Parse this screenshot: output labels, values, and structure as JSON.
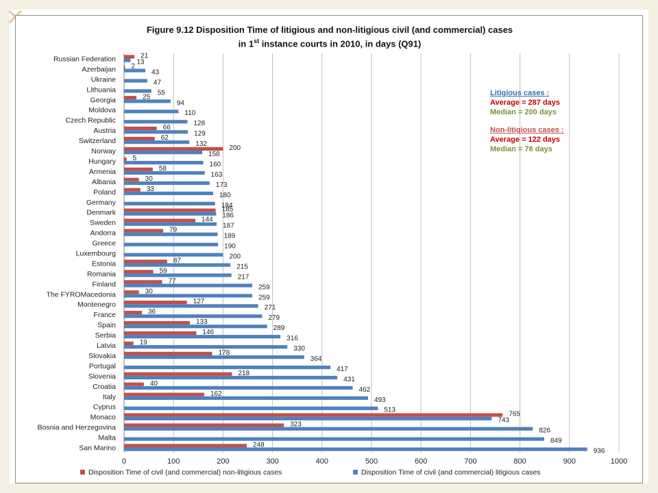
{
  "chart_data": {
    "type": "bar",
    "orientation": "horizontal",
    "title_line1": "Figure 9.12 Disposition Time of litigious and non-litigious civil (and commercial) cases",
    "title_line2_pre": "in 1",
    "title_line2_sup": "st",
    "title_line2_post": " instance courts in 2010, in days (Q91)",
    "xlim": [
      0,
      1000
    ],
    "xticks": [
      0,
      100,
      200,
      300,
      400,
      500,
      600,
      700,
      800,
      900,
      1000
    ],
    "grid": true,
    "legend_position": "bottom",
    "categories": [
      "Russian Federation",
      "Azerbaijan",
      "Ukraine",
      "Lithuania",
      "Georgia",
      "Moldova",
      "Czech Republic",
      "Austria",
      "Switzerland",
      "Norway",
      "Hungary",
      "Armenia",
      "Albania",
      "Poland",
      "Germany",
      "Denmark",
      "Sweden",
      "Andorra",
      "Greece",
      "Luxembourg",
      "Estonia",
      "Romania",
      "Finland",
      "The FYROMacedonia",
      "Montenegro",
      "France",
      "Spain",
      "Serbia",
      "Latvia",
      "Slovakia",
      "Portugal",
      "Slovenia",
      "Croatia",
      "Italy",
      "Cyprus",
      "Monaco",
      "Bosnia and Herzegovina",
      "Malta",
      "San Marino"
    ],
    "series": [
      {
        "name": "Disposition Time of civil (and commercial) non-litigious cases",
        "color": "#c0504d",
        "values": [
          21,
          2,
          null,
          null,
          25,
          null,
          null,
          66,
          62,
          200,
          5,
          58,
          30,
          33,
          null,
          185,
          144,
          79,
          null,
          null,
          87,
          59,
          77,
          30,
          127,
          36,
          133,
          146,
          19,
          178,
          null,
          218,
          40,
          162,
          null,
          765,
          323,
          null,
          248
        ]
      },
      {
        "name": "Disposition Time of civil (and commercial) litigious cases",
        "color": "#4f81bd",
        "values": [
          13,
          43,
          47,
          55,
          94,
          110,
          128,
          129,
          132,
          158,
          160,
          163,
          173,
          180,
          184,
          186,
          187,
          189,
          190,
          200,
          215,
          217,
          259,
          259,
          271,
          279,
          289,
          316,
          330,
          364,
          417,
          431,
          462,
          493,
          513,
          743,
          826,
          849,
          936
        ]
      }
    ]
  },
  "annotations": {
    "litigious_heading": "Litigious cases :",
    "litigious_average": "Average = 287 days",
    "litigious_median": "Median = 200 days",
    "nonlitigious_heading": "Non-litigious cases :",
    "nonlitigious_average": "Average = 122 days",
    "nonlitigious_median": "Median = 78 days",
    "heading_color": "#2e74b5",
    "nonlit_heading_color": "#c0504d",
    "average_color": "#c00000",
    "median_color": "#77933c"
  },
  "decoration": {
    "corner_symbol": "✕"
  }
}
